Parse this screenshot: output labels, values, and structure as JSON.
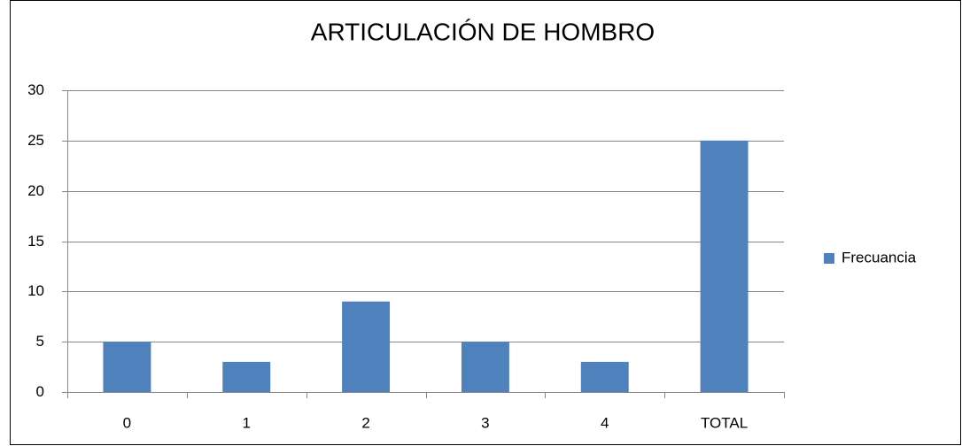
{
  "chart_data": {
    "type": "bar",
    "title": "ARTICULACIÓN DE HOMBRO",
    "categories": [
      "0",
      "1",
      "2",
      "3",
      "4",
      "TOTAL"
    ],
    "series": [
      {
        "name": "Frecuancia",
        "color": "#4f81bd",
        "values": [
          5,
          3,
          9,
          5,
          3,
          25
        ]
      }
    ],
    "ylim": [
      0,
      30
    ],
    "yticks": [
      0,
      5,
      10,
      15,
      20,
      25,
      30
    ],
    "grid": true,
    "legend": "right"
  }
}
